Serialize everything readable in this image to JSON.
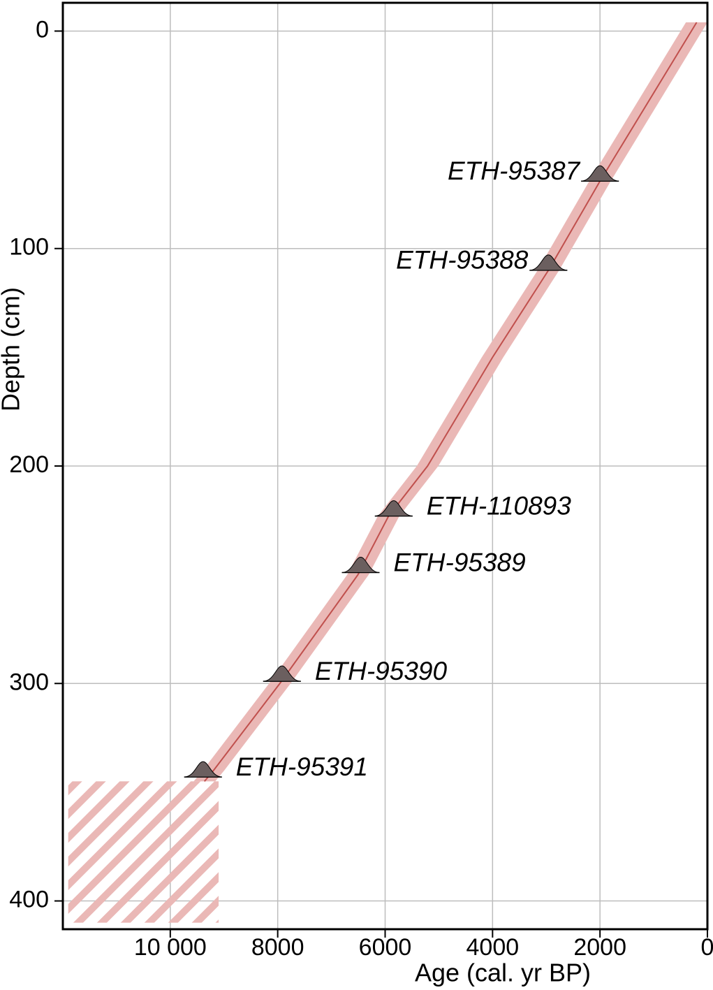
{
  "chart_data": {
    "type": "age-depth",
    "xlabel": "Age (cal. yr BP)",
    "ylabel": "Depth (cm)",
    "xlim": [
      12000,
      0
    ],
    "xticks": [
      {
        "value": 10000,
        "label": "10 000"
      },
      8000,
      6000,
      4000,
      2000,
      0
    ],
    "ylim": [
      -13,
      413
    ],
    "yticks": [
      0,
      100,
      200,
      300,
      400
    ],
    "grid": true,
    "model": {
      "color": "#c0504d",
      "band_color": "#eab8b6",
      "depth": [
        -4,
        69,
        110,
        150,
        200,
        223,
        250,
        300,
        340,
        345
      ],
      "age": [
        200,
        2000,
        2960,
        4000,
        5210,
        5935,
        6506,
        7960,
        9195,
        9364
      ],
      "age_min": [
        0,
        1800,
        2760,
        3800,
        5010,
        5735,
        6306,
        7760,
        8995,
        9164
      ],
      "age_max": [
        400,
        2200,
        3160,
        4200,
        5410,
        6135,
        6706,
        8160,
        9395,
        9564
      ]
    },
    "hatched": {
      "color": "#eab8b6",
      "depth": [
        345,
        410
      ],
      "age": [
        9100,
        11900
      ]
    },
    "dates": [
      {
        "label": "ETH-95387",
        "age": 2000,
        "depth": 69
      },
      {
        "label": "ETH-95388",
        "age": 2960,
        "depth": 110
      },
      {
        "label": "ETH-110893",
        "age": 5840,
        "depth": 223
      },
      {
        "label": "ETH-95389",
        "age": 6455,
        "depth": 249
      },
      {
        "label": "ETH-95390",
        "age": 7920,
        "depth": 299
      },
      {
        "label": "ETH-95391",
        "age": 9390,
        "depth": 343
      }
    ],
    "date_color": "#6b5f5f"
  }
}
